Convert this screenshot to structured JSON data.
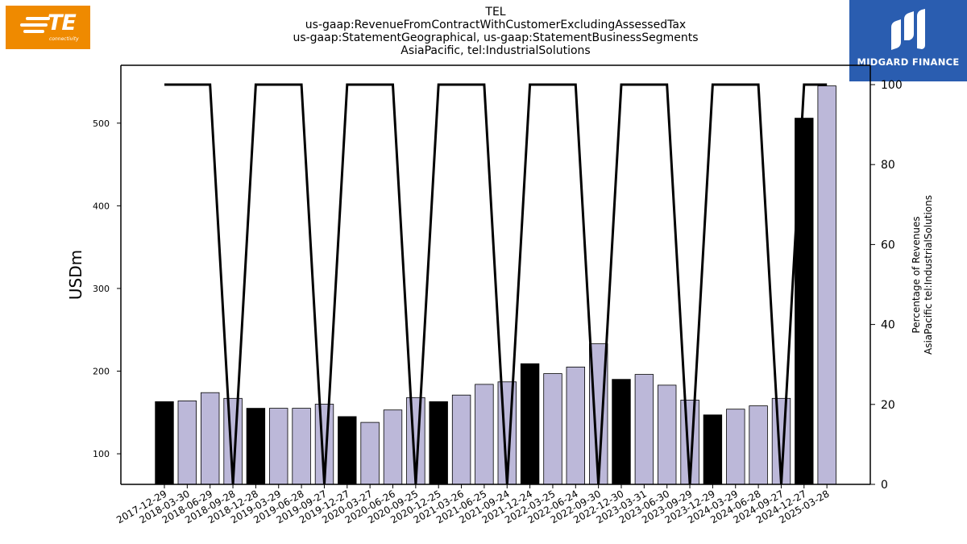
{
  "logos": {
    "left": {
      "name": "TE",
      "tagline": "connectivity",
      "color": "#ef8a00"
    },
    "right": {
      "name": "MIDGARD FINANCE",
      "color": "#2a5db0"
    }
  },
  "title_lines": [
    "TEL",
    "us-gaap:RevenueFromContractWithCustomerExcludingAssessedTax",
    "us-gaap:StatementGeographical, us-gaap:StatementBusinessSegments",
    "AsiaPacific, tel:IndustrialSolutions"
  ],
  "chart_data": {
    "type": "bar",
    "ylabel": "USDm",
    "y2label_lines": [
      "Percentage of Revenues",
      "AsiaPacific tel:IndustrialSolutions"
    ],
    "ylim": [
      63,
      570
    ],
    "y2lim": [
      0,
      100
    ],
    "yticks": [
      100,
      200,
      300,
      400,
      500
    ],
    "y2ticks": [
      0,
      20,
      40,
      60,
      80,
      100
    ],
    "categories": [
      "2017-12-29",
      "2018-03-30",
      "2018-06-29",
      "2018-09-28",
      "2018-12-28",
      "2019-03-29",
      "2019-06-28",
      "2019-09-27",
      "2019-12-27",
      "2020-03-27",
      "2020-06-26",
      "2020-09-25",
      "2020-12-25",
      "2021-03-26",
      "2021-06-25",
      "2021-09-24",
      "2021-12-24",
      "2022-03-25",
      "2022-06-24",
      "2022-09-30",
      "2022-12-30",
      "2023-03-31",
      "2023-06-30",
      "2023-09-29",
      "2023-12-29",
      "2024-03-29",
      "2024-06-28",
      "2024-09-27",
      "2024-12-27",
      "2025-03-28"
    ],
    "series": [
      {
        "values": [
          163,
          164,
          174,
          167,
          155,
          155,
          155,
          160,
          145,
          138,
          153,
          168,
          163,
          171,
          184,
          187,
          209,
          197,
          205,
          233,
          190,
          196,
          183,
          165,
          147,
          154,
          158,
          167,
          506,
          545
        ],
        "highlight": [
          true,
          false,
          false,
          false,
          true,
          false,
          false,
          false,
          true,
          false,
          false,
          false,
          true,
          false,
          false,
          false,
          true,
          false,
          false,
          false,
          true,
          false,
          false,
          false,
          true,
          false,
          false,
          false,
          true,
          false
        ],
        "colors": {
          "highlight": "#000000",
          "normal": "#bcb8d9"
        }
      },
      {
        "axis": "right",
        "type": "line",
        "values": [
          100,
          100,
          100,
          0,
          100,
          100,
          100,
          0,
          100,
          100,
          100,
          0,
          100,
          100,
          100,
          0,
          100,
          100,
          100,
          0,
          100,
          100,
          100,
          0,
          100,
          100,
          100,
          0,
          100,
          100
        ],
        "color": "#000000"
      }
    ]
  }
}
